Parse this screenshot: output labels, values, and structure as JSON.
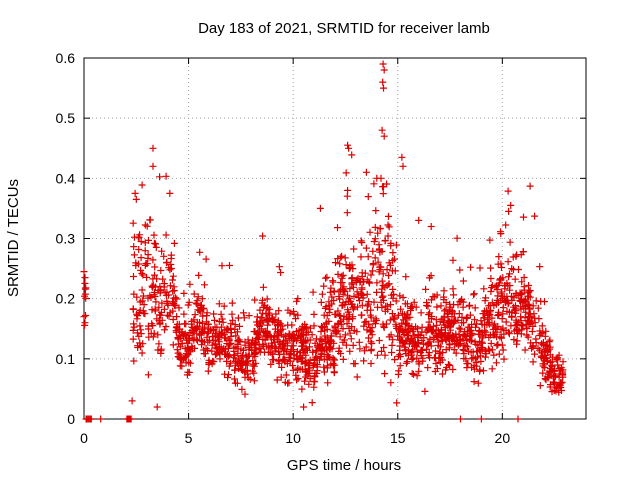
{
  "chart_data": {
    "type": "scatter",
    "title": "Day 183 of 2021, SRMTID for receiver lamb",
    "xlabel": "GPS time / hours",
    "ylabel": "SRMTID / TECUs",
    "xlim": [
      0,
      24
    ],
    "ylim": [
      0,
      0.6
    ],
    "xticks": [
      0,
      5,
      10,
      15,
      20
    ],
    "yticks": [
      0,
      0.1,
      0.2,
      0.3,
      0.4,
      0.5,
      0.6
    ],
    "xtick_labels": [
      "0",
      "5",
      "10",
      "15",
      "20"
    ],
    "ytick_labels": [
      "0",
      "0.1",
      "0.2",
      "0.3",
      "0.4",
      "0.5",
      "0.6"
    ],
    "grid": true,
    "marker": "+",
    "color": "#dd0000",
    "profile": {
      "x": [
        0.0,
        0.1,
        0.3,
        0.8,
        2.2,
        2.4,
        2.8,
        3.2,
        3.5,
        3.9,
        4.3,
        4.6,
        5.0,
        5.5,
        6.0,
        6.5,
        7.0,
        7.5,
        8.0,
        8.5,
        9.0,
        9.5,
        10.0,
        10.5,
        11.0,
        11.5,
        12.0,
        12.5,
        13.0,
        13.5,
        14.0,
        14.3,
        14.7,
        15.0,
        15.5,
        16.0,
        16.5,
        17.0,
        17.5,
        18.0,
        18.5,
        19.0,
        19.5,
        20.0,
        20.5,
        21.0,
        21.5,
        22.0,
        22.5,
        22.9
      ],
      "median": [
        0.22,
        0.2,
        0.0,
        0.0,
        0.0,
        0.2,
        0.2,
        0.22,
        0.2,
        0.21,
        0.2,
        0.12,
        0.11,
        0.18,
        0.13,
        0.13,
        0.12,
        0.1,
        0.09,
        0.16,
        0.13,
        0.12,
        0.12,
        0.12,
        0.1,
        0.13,
        0.16,
        0.2,
        0.17,
        0.2,
        0.22,
        0.25,
        0.2,
        0.15,
        0.13,
        0.12,
        0.15,
        0.14,
        0.15,
        0.15,
        0.14,
        0.13,
        0.16,
        0.18,
        0.19,
        0.18,
        0.16,
        0.11,
        0.07,
        0.07
      ],
      "spread": [
        0.03,
        0.03,
        0.0,
        0.0,
        0.0,
        0.1,
        0.12,
        0.13,
        0.12,
        0.1,
        0.08,
        0.05,
        0.05,
        0.06,
        0.06,
        0.05,
        0.06,
        0.05,
        0.05,
        0.06,
        0.06,
        0.06,
        0.06,
        0.07,
        0.07,
        0.08,
        0.09,
        0.12,
        0.1,
        0.11,
        0.14,
        0.2,
        0.12,
        0.1,
        0.06,
        0.06,
        0.07,
        0.07,
        0.07,
        0.06,
        0.07,
        0.07,
        0.08,
        0.09,
        0.1,
        0.08,
        0.08,
        0.06,
        0.04,
        0.04
      ]
    },
    "outliers": [
      {
        "x": 14.3,
        "y": 0.59
      },
      {
        "x": 14.35,
        "y": 0.58
      },
      {
        "x": 14.28,
        "y": 0.56
      },
      {
        "x": 14.32,
        "y": 0.55
      },
      {
        "x": 14.25,
        "y": 0.48
      },
      {
        "x": 14.35,
        "y": 0.47
      },
      {
        "x": 12.6,
        "y": 0.455
      },
      {
        "x": 12.65,
        "y": 0.45
      },
      {
        "x": 3.3,
        "y": 0.45
      },
      {
        "x": 3.3,
        "y": 0.42
      },
      {
        "x": 15.2,
        "y": 0.435
      },
      {
        "x": 15.25,
        "y": 0.42
      },
      {
        "x": 14.0,
        "y": 0.4
      },
      {
        "x": 14.2,
        "y": 0.4
      },
      {
        "x": 13.5,
        "y": 0.41
      },
      {
        "x": 12.6,
        "y": 0.38
      },
      {
        "x": 4.1,
        "y": 0.375
      },
      {
        "x": 2.5,
        "y": 0.365
      },
      {
        "x": 20.4,
        "y": 0.355
      },
      {
        "x": 20.3,
        "y": 0.345
      },
      {
        "x": 11.3,
        "y": 0.35
      },
      {
        "x": 3.5,
        "y": 0.02
      },
      {
        "x": 2.3,
        "y": 0.03
      },
      {
        "x": 10.5,
        "y": 0.02
      },
      {
        "x": 0.0,
        "y": 0.245
      },
      {
        "x": 0.05,
        "y": 0.235
      },
      {
        "x": 0.0,
        "y": 0.17
      },
      {
        "x": 0.05,
        "y": 0.16
      },
      {
        "x": 16.0,
        "y": 0.33
      },
      {
        "x": 16.6,
        "y": 0.32
      }
    ],
    "zero_points_x": [
      0.1,
      0.15,
      0.2,
      0.25,
      0.3,
      0.35,
      0.8,
      2.05,
      2.1,
      2.15,
      2.2,
      2.25,
      18.0,
      19.0,
      20.75
    ]
  }
}
